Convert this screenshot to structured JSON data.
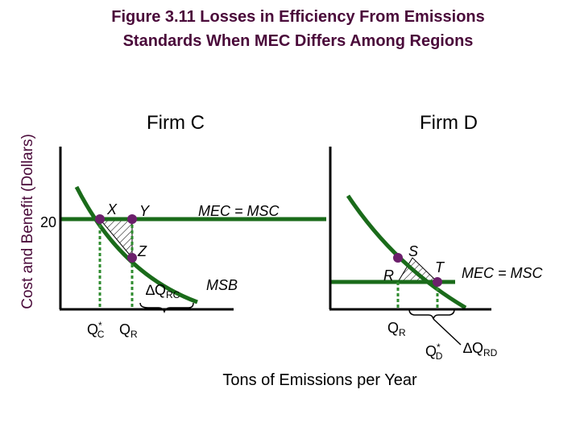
{
  "figure": {
    "title_line1": "Figure 3.11 Losses in Efficiency From Emissions",
    "title_line2": "Standards When MEC Differs Among Regions",
    "y_axis_label": "Cost and Benefit (Dollars)",
    "x_axis_label": "Tons of Emissions per Year"
  },
  "firm_c": {
    "label": "Firm C",
    "price_tick": "20",
    "point_x": "X",
    "point_y": "Y",
    "point_z": "Z",
    "mec_label": "MEC = MSC",
    "msb_label": "MSB",
    "delta_q": "∆Q",
    "delta_q_sub": "RC",
    "q_star": "Q",
    "q_star_sup": "*",
    "q_star_sub": "C",
    "q_r": "Q",
    "q_r_sub": "R"
  },
  "firm_d": {
    "label": "Firm D",
    "point_s": "S",
    "point_r": "R",
    "point_t": "T",
    "mec_label": "MEC = MSC",
    "delta_q": "∆Q",
    "delta_q_sub": "RD",
    "q_star": "Q",
    "q_star_sup": "*",
    "q_star_sub": "D",
    "q_r": "Q",
    "q_r_sub": "R"
  },
  "colors": {
    "text": "#4a0a3a",
    "axis": "#000000",
    "curve": "#1a6b1a",
    "dot": "#6b1f6b",
    "dashed": "#2e8b2e"
  }
}
